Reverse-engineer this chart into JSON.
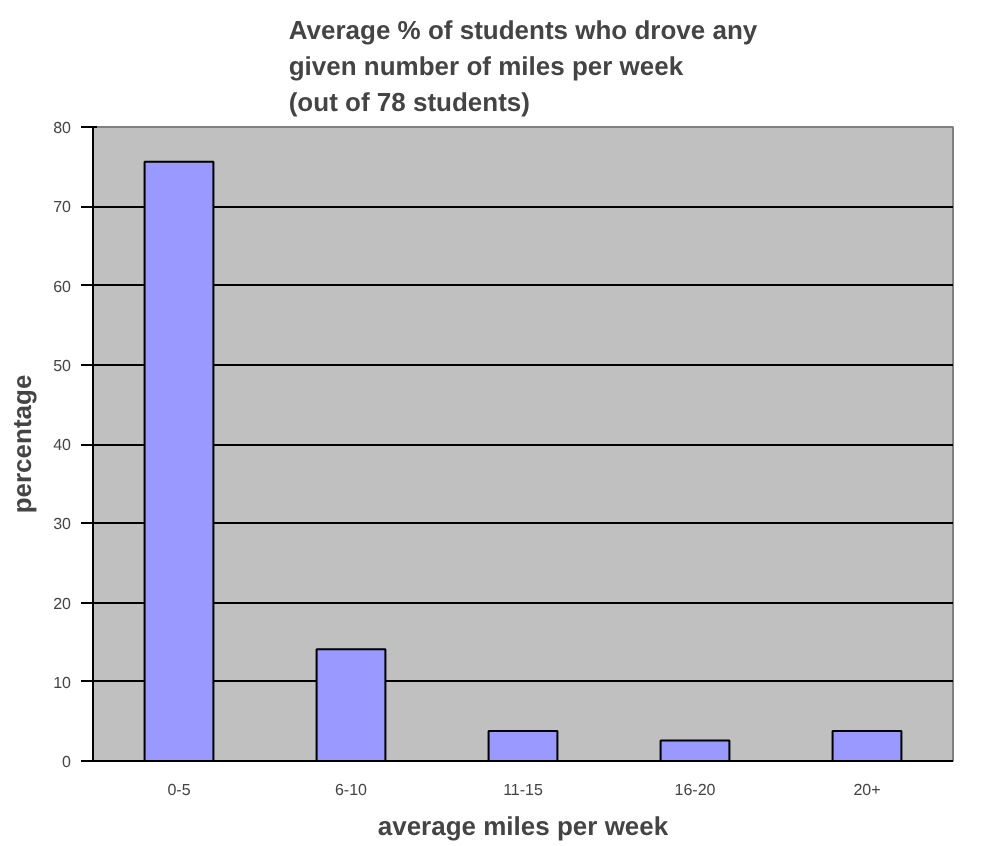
{
  "chart_data": {
    "type": "bar",
    "title": "Average % of students who drove any\ngiven number of miles per week\n(out of 78 students)",
    "xlabel": "average miles per week",
    "ylabel": "percentage",
    "categories": [
      "0-5",
      "6-10",
      "11-15",
      "16-20",
      "20+"
    ],
    "values": [
      75.6,
      14.1,
      3.8,
      2.6,
      3.8
    ],
    "color": "#9999ff",
    "ylim": [
      0,
      80
    ],
    "yticks": [
      0,
      10,
      20,
      30,
      40,
      50,
      60,
      70,
      80
    ],
    "grid": "y"
  }
}
